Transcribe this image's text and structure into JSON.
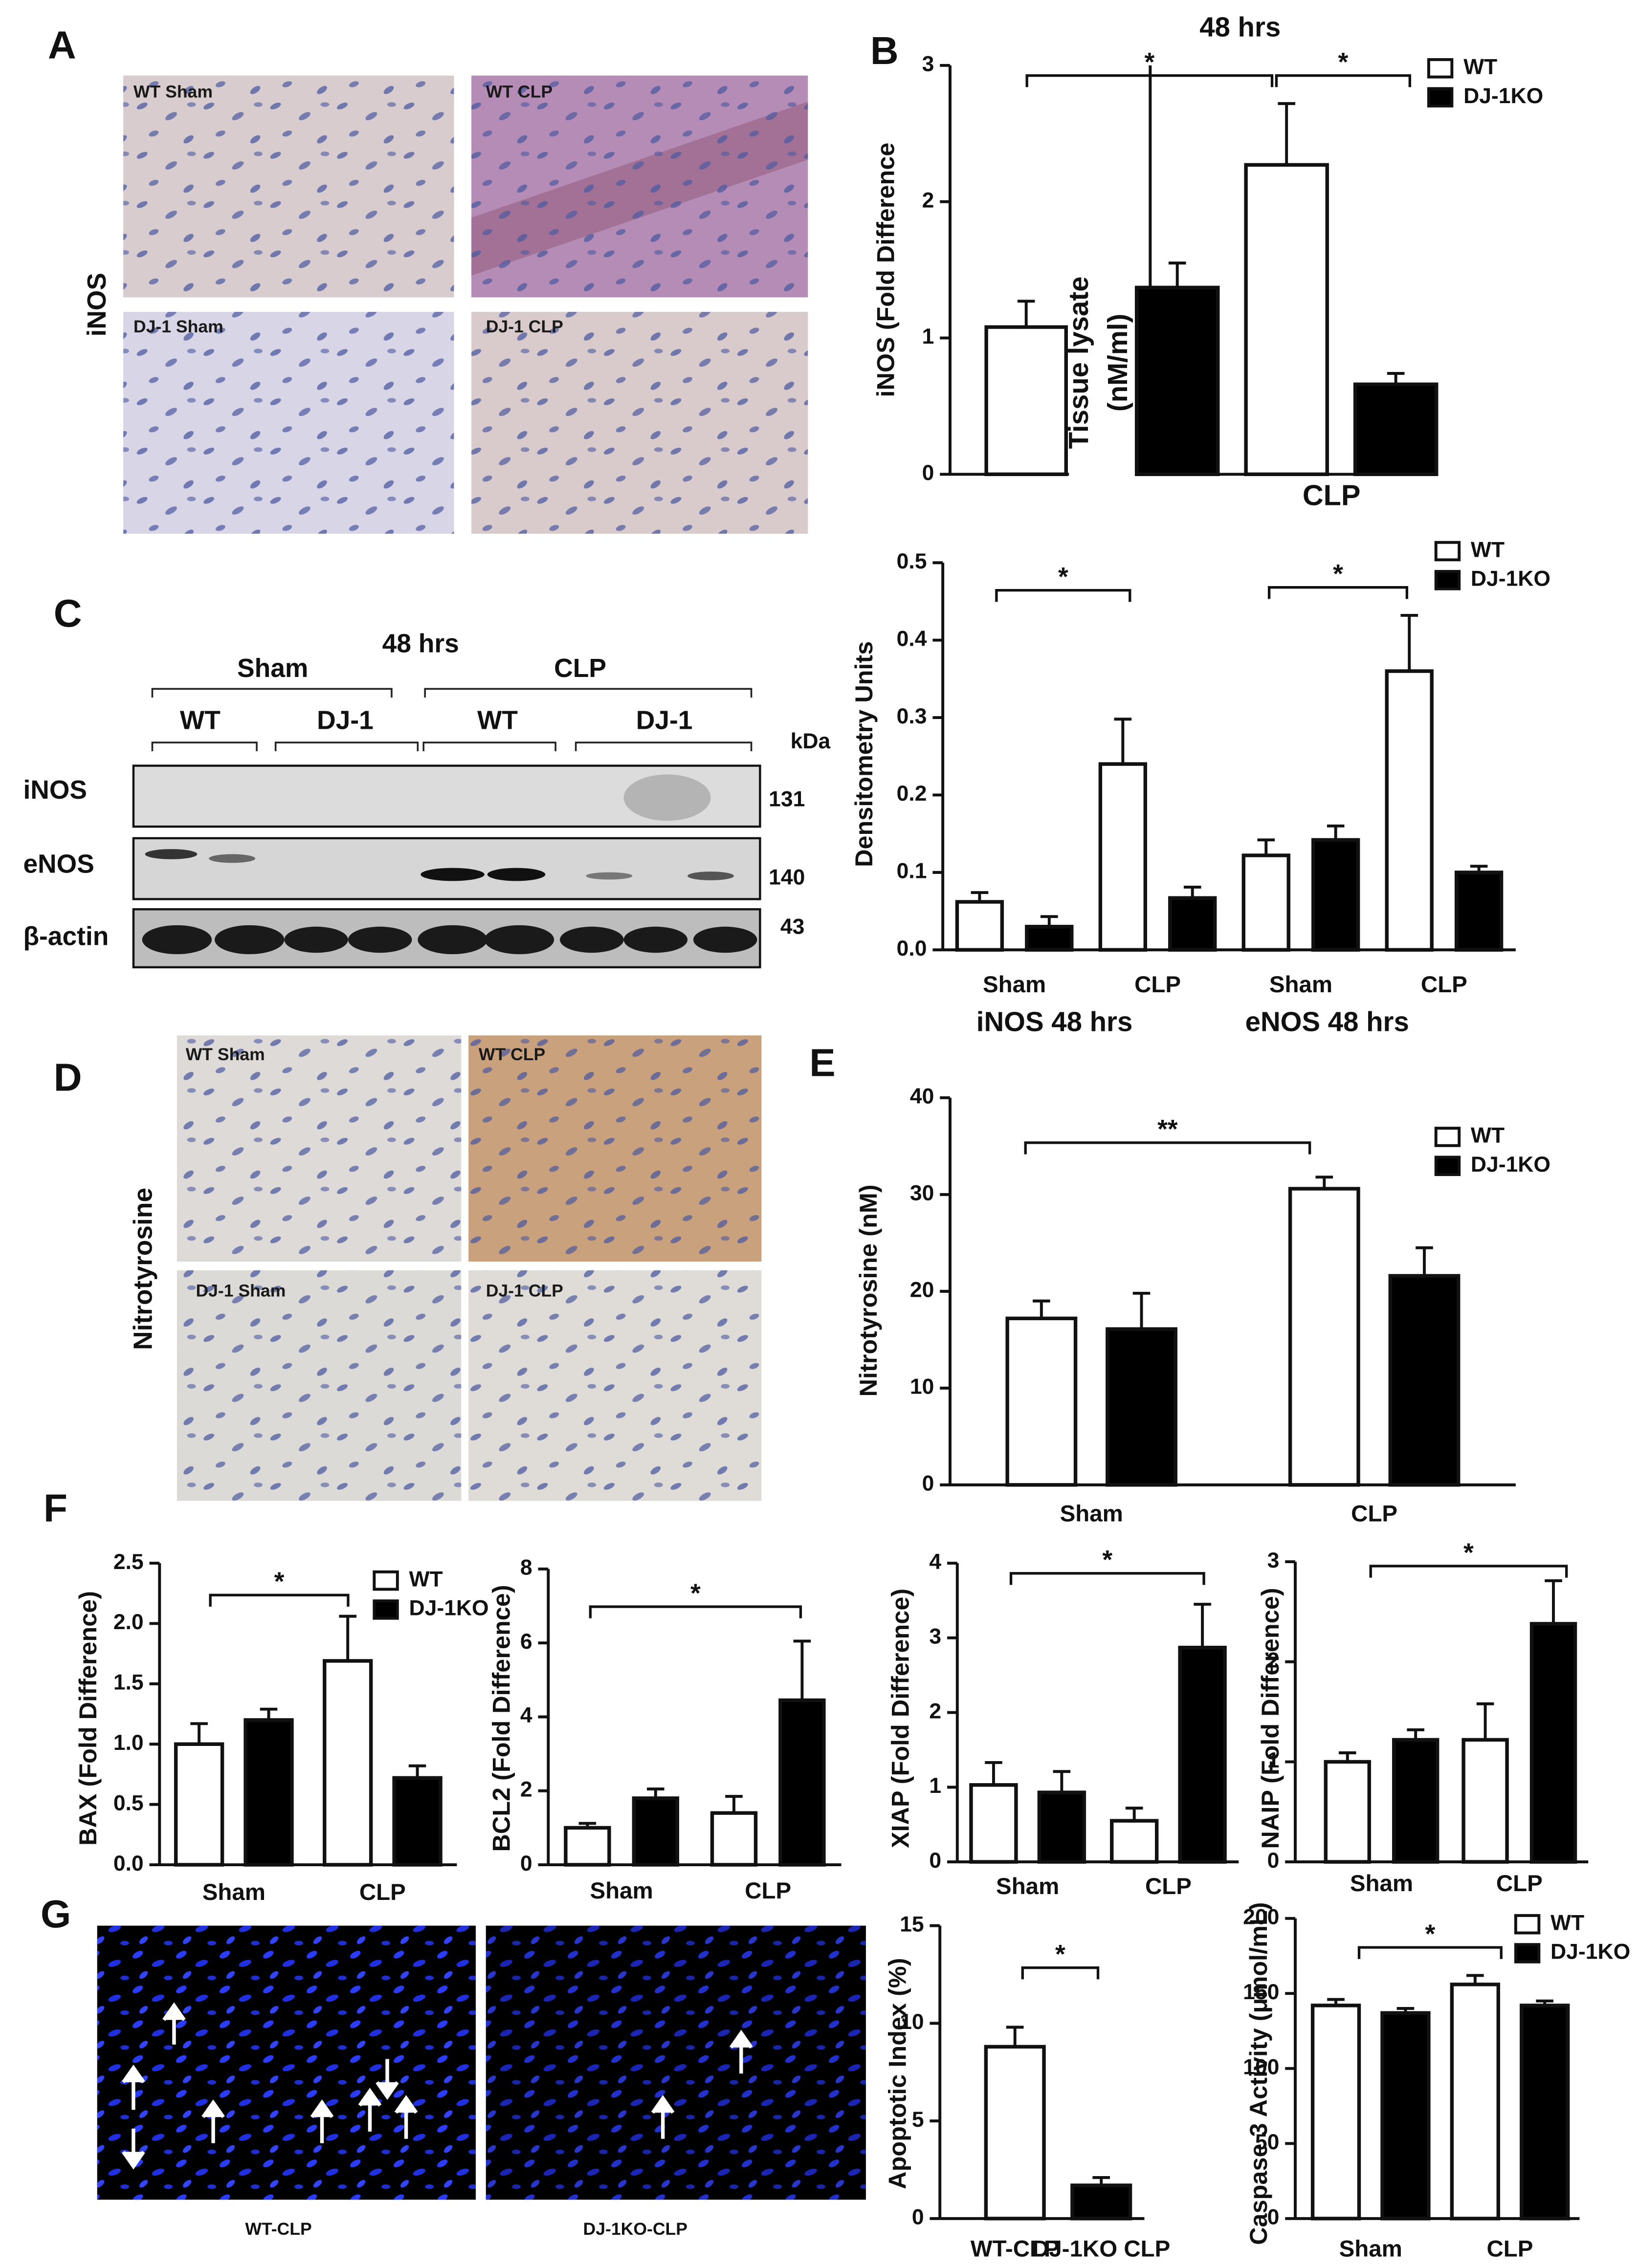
{
  "figure": {
    "panels": [
      "A",
      "B",
      "C",
      "D",
      "E",
      "F",
      "G"
    ],
    "A": {
      "side_label": "iNOS",
      "image_labels": [
        "WT Sham",
        "WT CLP",
        "DJ-1 Sham",
        "DJ-1 CLP"
      ]
    },
    "C_blot": {
      "title": "48 hrs",
      "groups": [
        "Sham",
        "CLP"
      ],
      "lanes": [
        "WT",
        "DJ-1",
        "WT",
        "DJ-1"
      ],
      "unit": "kDa",
      "rows": [
        {
          "label": "iNOS",
          "kda": 131
        },
        {
          "label": "eNOS",
          "kda": 140
        },
        {
          "label": "β-actin",
          "kda": 43
        }
      ]
    },
    "D": {
      "side_label": "Nitrotyrosine",
      "image_labels": [
        "WT Sham",
        "WT CLP",
        "DJ-1 Sham",
        "DJ-1 CLP"
      ]
    },
    "G": {
      "captions": [
        "WT-CLP",
        "DJ-1KO-CLP"
      ]
    }
  },
  "chart_data": [
    {
      "type": "bar",
      "ylabel": "iNOS (Fold Difference",
      "categories": [
        null
      ],
      "ylim": [
        0,
        3
      ],
      "yticks": [
        0,
        1,
        2,
        3
      ],
      "series": [
        {
          "color": "#ffffff",
          "values": [
            1.08
          ],
          "errors": [
            0.19
          ]
        }
      ],
      "annotations": [
        "*"
      ]
    },
    {
      "type": "bar",
      "title": "48 hrs",
      "ylabel": [
        "Tissue lysate",
        "(nM/ml)"
      ],
      "xlabel": "CLP",
      "categories": [
        null,
        null,
        null
      ],
      "ylim": [
        0,
        3
      ],
      "series": [
        {
          "name": "WT",
          "color": "#ffffff",
          "values": [
            null,
            2.27,
            null
          ],
          "errors": [
            null,
            0.45,
            null
          ]
        },
        {
          "name": "DJ-1KO",
          "color": "#000000",
          "values": [
            1.37,
            null,
            0.66
          ],
          "errors": [
            0.18,
            null,
            0.08
          ]
        }
      ],
      "legend": true,
      "annotations": [
        "*"
      ]
    },
    {
      "type": "bar",
      "ylabel": "Densitometry Units",
      "categories": [
        "Sham",
        "CLP",
        "Sham",
        "CLP"
      ],
      "xgroups": [
        "iNOS  48 hrs",
        "eNOS  48 hrs"
      ],
      "ylim": [
        0,
        0.5
      ],
      "yticks": [
        {
          "value": 0,
          "label": "0.0"
        },
        0.1,
        0.2,
        0.3,
        0.4,
        0.5
      ],
      "series": [
        {
          "name": "WT",
          "color": "#ffffff",
          "values": [
            0.062,
            0.24,
            0.122,
            0.36
          ],
          "errors": [
            0.012,
            0.058,
            0.02,
            0.072
          ]
        },
        {
          "name": "DJ-1KO",
          "color": "#000000",
          "values": [
            0.03,
            0.067,
            0.142,
            0.1
          ],
          "errors": [
            0.013,
            0.014,
            0.018,
            0.008
          ]
        }
      ],
      "legend": true,
      "annotations": [
        "*",
        "*"
      ]
    },
    {
      "type": "bar",
      "ylabel": "Nitrotyrosine (nM)",
      "categories": [
        "Sham",
        "CLP"
      ],
      "ylim": [
        0,
        40
      ],
      "yticks": [
        0,
        10,
        20,
        30,
        40
      ],
      "series": [
        {
          "name": "WT",
          "color": "#ffffff",
          "values": [
            17.2,
            30.6
          ],
          "errors": [
            1.8,
            1.2
          ]
        },
        {
          "name": "DJ-1KO",
          "color": "#000000",
          "values": [
            16.1,
            21.6
          ],
          "errors": [
            3.7,
            2.9
          ]
        }
      ],
      "legend": true,
      "annotations": [
        "**"
      ]
    },
    {
      "type": "bar",
      "ylabel": "BAX (Fold Difference)",
      "categories": [
        "Sham",
        "CLP"
      ],
      "ylim": [
        0,
        2.5
      ],
      "yticks": [
        {
          "value": 0,
          "label": "0.0"
        },
        0.5,
        {
          "value": 1,
          "label": "1.0"
        },
        1.5,
        {
          "value": 2,
          "label": "2.0"
        },
        2.5
      ],
      "series": [
        {
          "name": "WT",
          "color": "#ffffff",
          "values": [
            1.0,
            1.69
          ],
          "errors": [
            0.17,
            0.37
          ]
        },
        {
          "name": "DJ-1KO",
          "color": "#000000",
          "values": [
            1.2,
            0.72
          ],
          "errors": [
            0.09,
            0.1
          ]
        }
      ],
      "legend": true,
      "annotations": [
        "*"
      ]
    },
    {
      "type": "bar",
      "ylabel": "BCL2 (Fold Difference)",
      "categories": [
        "Sham",
        "CLP"
      ],
      "ylim": [
        0,
        8
      ],
      "yticks": [
        0,
        2,
        4,
        6,
        8
      ],
      "series": [
        {
          "color": "#ffffff",
          "values": [
            1.0,
            1.4
          ],
          "errors": [
            0.12,
            0.45
          ]
        },
        {
          "color": "#000000",
          "values": [
            1.8,
            4.45
          ],
          "errors": [
            0.25,
            1.6
          ]
        }
      ],
      "annotations": [
        "*"
      ]
    },
    {
      "type": "bar",
      "ylabel": "XIAP (Fold Difference)",
      "categories": [
        "Sham",
        "CLP"
      ],
      "ylim": [
        0,
        4
      ],
      "yticks": [
        0,
        1,
        2,
        3,
        4
      ],
      "series": [
        {
          "color": "#ffffff",
          "values": [
            1.03,
            0.55
          ],
          "errors": [
            0.3,
            0.17
          ]
        },
        {
          "color": "#000000",
          "values": [
            0.93,
            2.87
          ],
          "errors": [
            0.28,
            0.58
          ]
        }
      ],
      "annotations": [
        "*"
      ]
    },
    {
      "type": "bar",
      "ylabel": "NAIP (Fold Difference)",
      "categories": [
        "Sham",
        "CLP"
      ],
      "ylim": [
        0,
        3
      ],
      "yticks": [
        0,
        1,
        2,
        3
      ],
      "series": [
        {
          "color": "#ffffff",
          "values": [
            1.0,
            1.22
          ],
          "errors": [
            0.09,
            0.36
          ]
        },
        {
          "color": "#000000",
          "values": [
            1.22,
            2.38
          ],
          "errors": [
            0.1,
            0.43
          ]
        }
      ],
      "annotations": [
        "*"
      ]
    },
    {
      "type": "bar",
      "ylabel": "Apoptotic Index (%)",
      "categories": [
        "WT-CLP",
        "DJ-1KO CLP"
      ],
      "ylim": [
        0,
        15
      ],
      "yticks": [
        0,
        5,
        10,
        15
      ],
      "series": [
        {
          "color": "#ffffff",
          "values": [
            8.8,
            null
          ],
          "errors": [
            1.0,
            null
          ]
        },
        {
          "color": "#000000",
          "values": [
            null,
            1.7
          ],
          "errors": [
            null,
            0.4
          ]
        }
      ],
      "annotations": [
        "*"
      ]
    },
    {
      "type": "bar",
      "ylabel": "Caspase 3 Activity (μmol/mL)",
      "categories": [
        "Sham",
        "CLP"
      ],
      "ylim": [
        0,
        200
      ],
      "yticks": [
        0,
        50,
        100,
        150,
        200
      ],
      "series": [
        {
          "name": "WT",
          "color": "#ffffff",
          "values": [
            142,
            156
          ],
          "errors": [
            4,
            6
          ]
        },
        {
          "name": "DJ-1KO",
          "color": "#000000",
          "values": [
            137,
            142
          ],
          "errors": [
            3,
            3
          ]
        }
      ],
      "legend": true,
      "annotations": [
        "*"
      ]
    }
  ]
}
